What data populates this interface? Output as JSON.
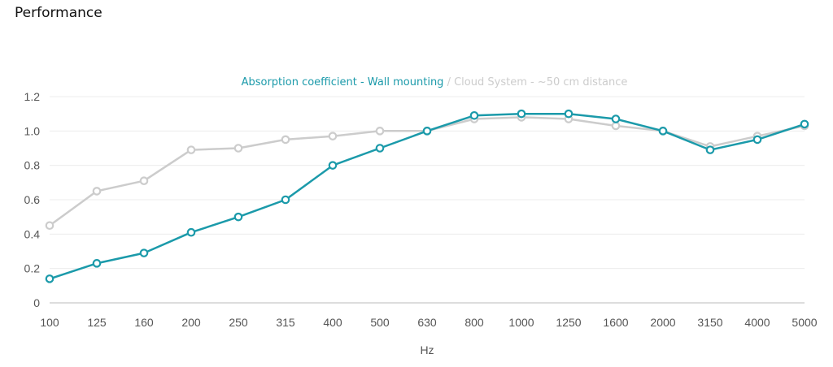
{
  "page": {
    "heading": "Performance"
  },
  "colors": {
    "series1": "#1b9aaa",
    "series2": "#cccccc",
    "grid": "#ececec",
    "axis": "#bbbbbb"
  },
  "chart_data": {
    "type": "line",
    "title": "",
    "xlabel": "Hz",
    "ylabel": "",
    "categories": [
      "100",
      "125",
      "160",
      "200",
      "250",
      "315",
      "400",
      "500",
      "630",
      "800",
      "1000",
      "1250",
      "1600",
      "2000",
      "3150",
      "4000",
      "5000"
    ],
    "yticks": [
      "0",
      "0.2",
      "0.4",
      "0.6",
      "0.8",
      "1.0",
      "1.2"
    ],
    "ylim": [
      0,
      1.2
    ],
    "grid": true,
    "legend_position": "top-center",
    "legend_separator": " / ",
    "series": [
      {
        "name": "Absorption coefficient - Wall mounting",
        "values": [
          0.14,
          0.23,
          0.29,
          0.41,
          0.5,
          0.6,
          0.8,
          0.9,
          1.0,
          1.09,
          1.1,
          1.1,
          1.07,
          1.0,
          0.89,
          0.95,
          1.04
        ]
      },
      {
        "name": "Cloud System - ~50 cm distance",
        "values": [
          0.45,
          0.65,
          0.71,
          0.89,
          0.9,
          0.95,
          0.97,
          1.0,
          1.0,
          1.07,
          1.08,
          1.07,
          1.03,
          1.0,
          0.91,
          0.97,
          1.03
        ]
      }
    ]
  }
}
